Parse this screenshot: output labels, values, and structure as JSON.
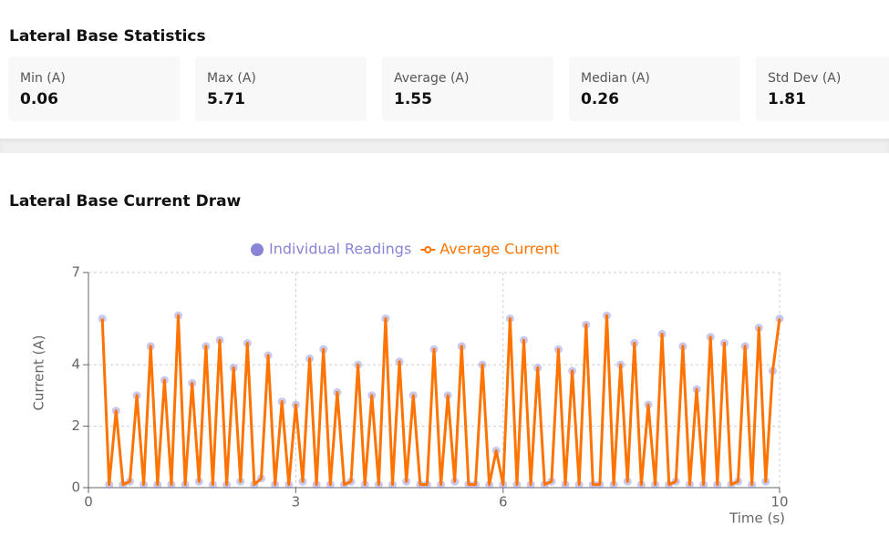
{
  "stats_section": {
    "title": "Lateral Base Statistics",
    "cards": [
      {
        "label": "Min (A)",
        "value": 0.06
      },
      {
        "label": "Max (A)",
        "value": 5.71
      },
      {
        "label": "Average (A)",
        "value": 1.55
      },
      {
        "label": "Median (A)",
        "value": 0.26
      },
      {
        "label": "Std Dev (A)",
        "value": 1.81
      }
    ]
  },
  "chart_section": {
    "title": "Lateral Base Current Draw"
  },
  "chart_data": {
    "type": "line",
    "x_label": "Time (s)",
    "y_label": "Current (A)",
    "xlim": [
      0,
      10
    ],
    "xticks": [
      0,
      3,
      6,
      10
    ],
    "ylim": [
      0,
      7
    ],
    "yticks": [
      0,
      2,
      4,
      7
    ],
    "grid": true,
    "x": [
      0.2,
      0.3,
      0.4,
      0.5,
      0.6,
      0.7,
      0.8,
      0.9,
      1.0,
      1.1,
      1.2,
      1.3,
      1.4,
      1.5,
      1.6,
      1.7,
      1.8,
      1.9,
      2.0,
      2.1,
      2.2,
      2.3,
      2.4,
      2.5,
      2.6,
      2.7,
      2.8,
      2.9,
      3.0,
      3.1,
      3.2,
      3.3,
      3.4,
      3.5,
      3.6,
      3.7,
      3.8,
      3.9,
      4.0,
      4.1,
      4.2,
      4.3,
      4.4,
      4.5,
      4.6,
      4.7,
      4.8,
      4.9,
      5.0,
      5.1,
      5.2,
      5.3,
      5.4,
      5.5,
      5.6,
      5.7,
      5.8,
      5.9,
      6.0,
      6.1,
      6.2,
      6.3,
      6.4,
      6.5,
      6.6,
      6.7,
      6.8,
      6.9,
      7.0,
      7.1,
      7.2,
      7.3,
      7.4,
      7.5,
      7.6,
      7.7,
      7.8,
      7.9,
      8.0,
      8.1,
      8.2,
      8.3,
      8.4,
      8.5,
      8.6,
      8.7,
      8.8,
      8.9,
      9.0,
      9.1,
      9.2,
      9.3,
      9.4,
      9.5,
      9.6,
      9.7,
      9.8,
      9.9,
      10.0
    ],
    "series": [
      {
        "name": "Individual Readings",
        "color": "#8884d8",
        "marker": "scatter",
        "values": [
          5.5,
          0.1,
          2.5,
          0.1,
          0.2,
          3.0,
          0.1,
          4.6,
          0.1,
          3.5,
          0.1,
          5.6,
          0.1,
          3.4,
          0.2,
          4.6,
          0.1,
          4.8,
          0.1,
          3.9,
          0.2,
          4.7,
          0.1,
          0.3,
          4.3,
          0.1,
          2.8,
          0.1,
          2.7,
          0.2,
          4.2,
          0.1,
          4.5,
          0.1,
          3.1,
          0.1,
          0.2,
          4.0,
          0.1,
          3.0,
          0.1,
          5.5,
          0.1,
          4.1,
          0.2,
          3.0,
          0.1,
          0.1,
          4.5,
          0.1,
          3.0,
          0.2,
          4.6,
          0.1,
          0.1,
          4.0,
          0.1,
          1.2,
          0.1,
          5.5,
          0.1,
          4.8,
          0.1,
          3.9,
          0.1,
          0.2,
          4.5,
          0.1,
          3.8,
          0.1,
          5.3,
          0.1,
          0.1,
          5.6,
          0.1,
          4.0,
          0.2,
          4.7,
          0.1,
          2.7,
          0.1,
          5.0,
          0.1,
          0.2,
          4.6,
          0.1,
          3.2,
          0.1,
          4.9,
          0.1,
          4.7,
          0.1,
          0.2,
          4.6,
          0.1,
          5.2,
          0.2,
          3.8,
          5.5
        ]
      },
      {
        "name": "Average Current",
        "color": "#ff7300",
        "marker": "line",
        "values": [
          5.5,
          0.1,
          2.5,
          0.1,
          0.2,
          3.0,
          0.1,
          4.6,
          0.1,
          3.5,
          0.1,
          5.6,
          0.1,
          3.4,
          0.2,
          4.6,
          0.1,
          4.8,
          0.1,
          3.9,
          0.2,
          4.7,
          0.1,
          0.3,
          4.3,
          0.1,
          2.8,
          0.1,
          2.7,
          0.2,
          4.2,
          0.1,
          4.5,
          0.1,
          3.1,
          0.1,
          0.2,
          4.0,
          0.1,
          3.0,
          0.1,
          5.5,
          0.1,
          4.1,
          0.2,
          3.0,
          0.1,
          0.1,
          4.5,
          0.1,
          3.0,
          0.2,
          4.6,
          0.1,
          0.1,
          4.0,
          0.1,
          1.2,
          0.1,
          5.5,
          0.1,
          4.8,
          0.1,
          3.9,
          0.1,
          0.2,
          4.5,
          0.1,
          3.8,
          0.1,
          5.3,
          0.1,
          0.1,
          5.6,
          0.1,
          4.0,
          0.2,
          4.7,
          0.1,
          2.7,
          0.1,
          5.0,
          0.1,
          0.2,
          4.6,
          0.1,
          3.2,
          0.1,
          4.9,
          0.1,
          4.7,
          0.1,
          0.2,
          4.6,
          0.1,
          5.2,
          0.2,
          3.8,
          5.5
        ]
      }
    ]
  }
}
